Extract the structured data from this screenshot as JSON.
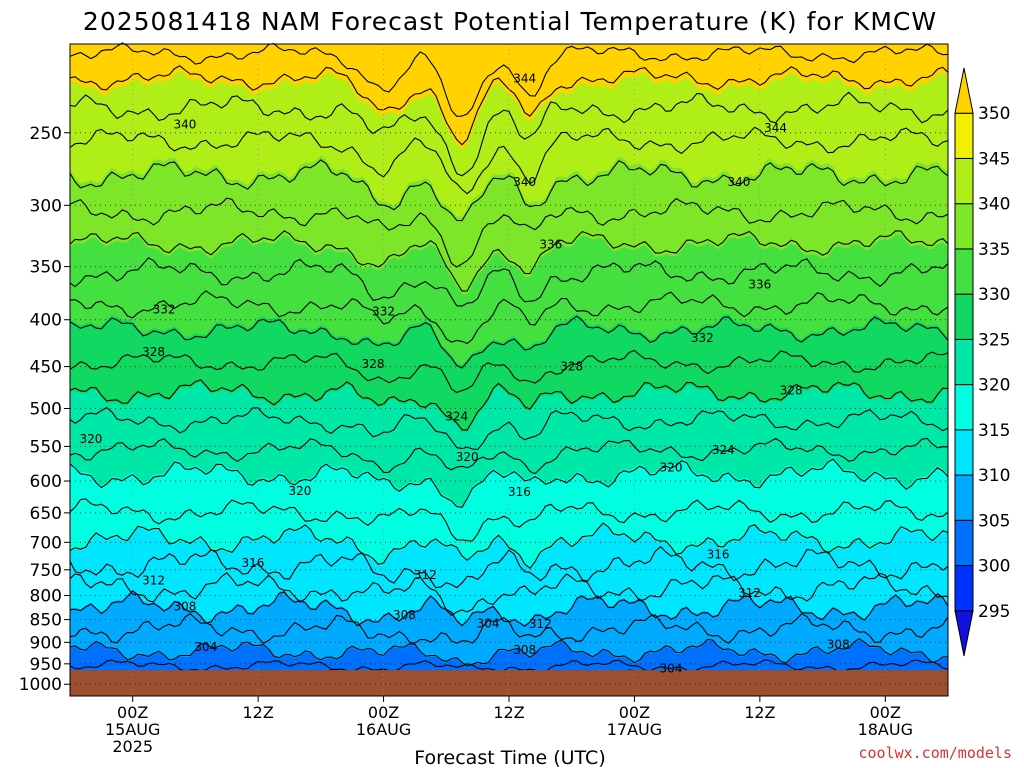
{
  "colors": {
    "terrain": "#9b5030",
    "credit": "#e03030",
    "fills": [
      "#1010e0",
      "#0032ff",
      "#0070ff",
      "#00aaff",
      "#00e6ff",
      "#00ffe0",
      "#00e8a8",
      "#10d860",
      "#44e040",
      "#7ee628",
      "#b0ee18",
      "#f0f000",
      "#ffd200"
    ]
  },
  "chart_data": {
    "type": "contour",
    "title": "2025081418 NAM Forecast Potential Temperature (K) for KMCW",
    "xlabel": "Forecast Time (UTC)",
    "ylabel": "",
    "credit": "coolwx.com/models",
    "x_axis": {
      "unit": "hours since 2025-08-14 18Z",
      "range": [
        0,
        84
      ],
      "ticks": [
        {
          "hour": 6,
          "lines": [
            "00Z",
            "15AUG",
            "2025"
          ]
        },
        {
          "hour": 18,
          "lines": [
            "12Z"
          ]
        },
        {
          "hour": 30,
          "lines": [
            "00Z",
            "16AUG"
          ]
        },
        {
          "hour": 42,
          "lines": [
            "12Z"
          ]
        },
        {
          "hour": 54,
          "lines": [
            "00Z",
            "17AUG"
          ]
        },
        {
          "hour": 66,
          "lines": [
            "12Z"
          ]
        },
        {
          "hour": 78,
          "lines": [
            "00Z",
            "18AUG"
          ]
        }
      ]
    },
    "y_axis": {
      "unit": "hPa",
      "scale": "log",
      "range": [
        1030,
        200
      ],
      "ticks": [
        250,
        300,
        350,
        400,
        450,
        500,
        550,
        600,
        650,
        700,
        750,
        800,
        850,
        900,
        950,
        1000
      ],
      "surface_pressure": 965
    },
    "grid": "dotted",
    "colorbar": {
      "unit": "K",
      "labels": [
        295,
        300,
        305,
        310,
        315,
        320,
        325,
        330,
        335,
        340,
        345,
        350
      ],
      "bounds": [
        295,
        300,
        305,
        310,
        315,
        320,
        325,
        330,
        335,
        340,
        345,
        350
      ]
    },
    "contour_interval": 4,
    "contour_labels": [
      {
        "value": "344",
        "hour": 43.5,
        "p": 218
      },
      {
        "value": "340",
        "hour": 11,
        "p": 245
      },
      {
        "value": "344",
        "hour": 67.5,
        "p": 247
      },
      {
        "value": "340",
        "hour": 43.5,
        "p": 283
      },
      {
        "value": "340",
        "hour": 64,
        "p": 283
      },
      {
        "value": "336",
        "hour": 46,
        "p": 331
      },
      {
        "value": "336",
        "hour": 66,
        "p": 366
      },
      {
        "value": "332",
        "hour": 9,
        "p": 390
      },
      {
        "value": "332",
        "hour": 30,
        "p": 392
      },
      {
        "value": "332",
        "hour": 60.5,
        "p": 419
      },
      {
        "value": "328",
        "hour": 8,
        "p": 434
      },
      {
        "value": "328",
        "hour": 29,
        "p": 447
      },
      {
        "value": "328",
        "hour": 48,
        "p": 450
      },
      {
        "value": "328",
        "hour": 69,
        "p": 478
      },
      {
        "value": "324",
        "hour": 37,
        "p": 510
      },
      {
        "value": "324",
        "hour": 62.5,
        "p": 555
      },
      {
        "value": "320",
        "hour": 2,
        "p": 540
      },
      {
        "value": "320",
        "hour": 38,
        "p": 565
      },
      {
        "value": "320",
        "hour": 57.5,
        "p": 580
      },
      {
        "value": "320",
        "hour": 22,
        "p": 615
      },
      {
        "value": "316",
        "hour": 43,
        "p": 617
      },
      {
        "value": "316",
        "hour": 17.5,
        "p": 737
      },
      {
        "value": "316",
        "hour": 62,
        "p": 722
      },
      {
        "value": "312",
        "hour": 8,
        "p": 770
      },
      {
        "value": "312",
        "hour": 34,
        "p": 760
      },
      {
        "value": "312",
        "hour": 65,
        "p": 795
      },
      {
        "value": "308",
        "hour": 11,
        "p": 823
      },
      {
        "value": "308",
        "hour": 32,
        "p": 840
      },
      {
        "value": "308",
        "hour": 73.5,
        "p": 905
      },
      {
        "value": "308",
        "hour": 43.5,
        "p": 918
      },
      {
        "value": "304",
        "hour": 40,
        "p": 858
      },
      {
        "value": "304",
        "hour": 13,
        "p": 911
      },
      {
        "value": "304",
        "hour": 57.5,
        "p": 961
      },
      {
        "value": "312",
        "hour": 45,
        "p": 860
      }
    ],
    "isentropes": [
      {
        "theta": 300,
        "base": 995,
        "amp": 5,
        "dip": 0.1
      },
      {
        "theta": 302,
        "base": 975,
        "amp": 10,
        "dip": 0.1
      },
      {
        "theta": 304,
        "base": 955,
        "amp": 15,
        "dip": 0.2
      },
      {
        "theta": 306,
        "base": 920,
        "amp": 25,
        "dip": 0.5
      },
      {
        "theta": 308,
        "base": 870,
        "amp": 30,
        "dip": 0.8
      },
      {
        "theta": 310,
        "base": 825,
        "amp": 30,
        "dip": 0.9
      },
      {
        "theta": 312,
        "base": 785,
        "amp": 30,
        "dip": 1.0
      },
      {
        "theta": 314,
        "base": 740,
        "amp": 30,
        "dip": 1.1
      },
      {
        "theta": 316,
        "base": 695,
        "amp": 25,
        "dip": 1.1
      },
      {
        "theta": 318,
        "base": 648,
        "amp": 20,
        "dip": 1.0
      },
      {
        "theta": 320,
        "base": 590,
        "amp": 20,
        "dip": 1.0
      },
      {
        "theta": 322,
        "base": 555,
        "amp": 15,
        "dip": 1.0
      },
      {
        "theta": 324,
        "base": 515,
        "amp": 15,
        "dip": 1.0
      },
      {
        "theta": 326,
        "base": 480,
        "amp": 15,
        "dip": 1.0
      },
      {
        "theta": 328,
        "base": 445,
        "amp": 12,
        "dip": 1.0
      },
      {
        "theta": 330,
        "base": 410,
        "amp": 12,
        "dip": 1.0
      },
      {
        "theta": 332,
        "base": 385,
        "amp": 12,
        "dip": 1.0
      },
      {
        "theta": 334,
        "base": 355,
        "amp": 12,
        "dip": 1.0
      },
      {
        "theta": 336,
        "base": 330,
        "amp": 10,
        "dip": 1.0
      },
      {
        "theta": 338,
        "base": 305,
        "amp": 10,
        "dip": 1.0
      },
      {
        "theta": 340,
        "base": 278,
        "amp": 10,
        "dip": 1.0
      },
      {
        "theta": 342,
        "base": 255,
        "amp": 8,
        "dip": 1.0
      },
      {
        "theta": 344,
        "base": 235,
        "amp": 8,
        "dip": 1.0
      },
      {
        "theta": 346,
        "base": 218,
        "amp": 6,
        "dip": 1.0
      },
      {
        "theta": 348,
        "base": 205,
        "amp": 5,
        "dip": 1.0
      }
    ]
  }
}
